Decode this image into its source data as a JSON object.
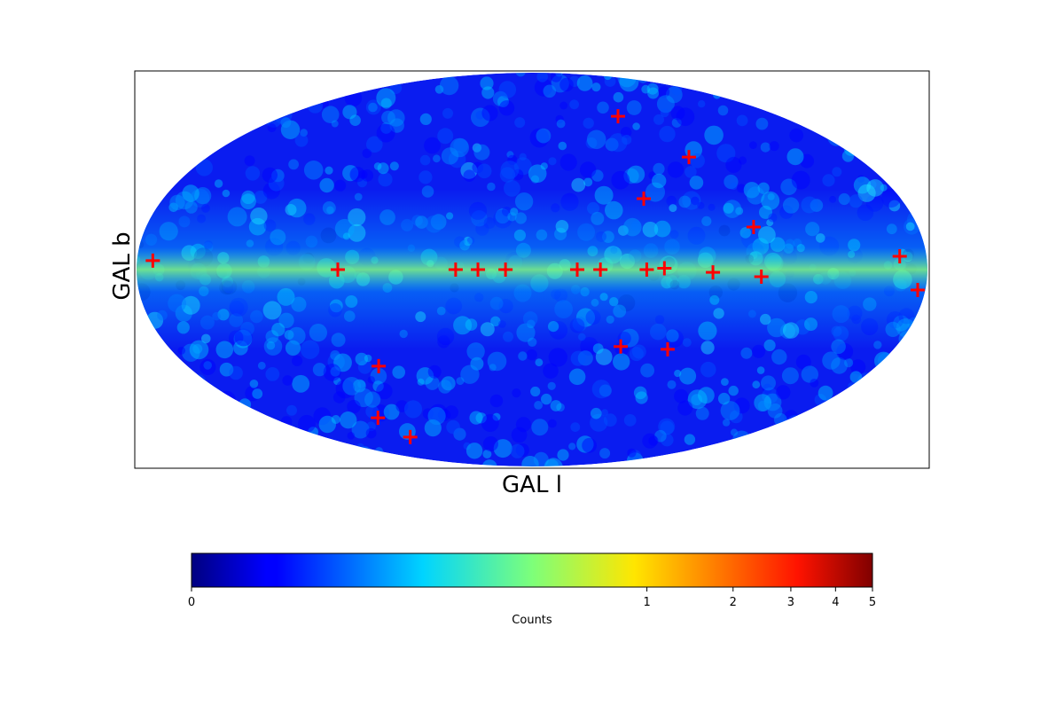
{
  "chart_data": {
    "type": "skymap",
    "projection": "mollweide",
    "xlabel": "GAL l",
    "ylabel": "GAL b",
    "points": {
      "marker": "+",
      "color": "#ff0000",
      "l": [
        172,
        88,
        34.6,
        24.5,
        12,
        -20.5,
        -31,
        -52,
        -60,
        -82,
        -104,
        -167,
        -175.7,
        -102.8,
        -61.3,
        -86.3,
        -54.2,
        -43.6,
        -67.1,
        79.5,
        104.9,
        102.6
      ],
      "b": [
        3.3,
        0,
        0,
        0,
        0,
        0,
        0,
        0,
        0.5,
        -1,
        -2.6,
        4.9,
        -7.5,
        15.7,
        60.9,
        42.9,
        26.4,
        -28.7,
        -29.8,
        -36.4,
        -58.5,
        -68
      ]
    },
    "colorbar": {
      "label": "Counts",
      "colormap": "jet",
      "scale": "power",
      "power": 0.25,
      "lim": [
        0,
        5
      ],
      "ticks": [
        0,
        1,
        2,
        3,
        4,
        5
      ]
    }
  }
}
